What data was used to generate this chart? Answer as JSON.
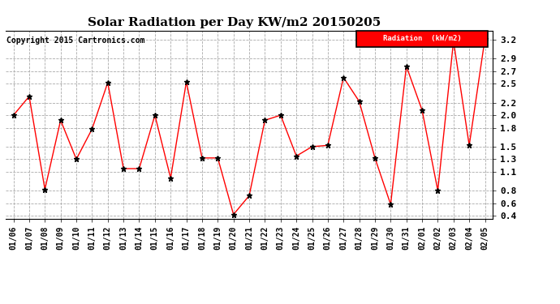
{
  "title": "Solar Radiation per Day KW/m2 20150205",
  "copyright": "Copyright 2015 Cartronics.com",
  "legend_label": "Radiation  (kW/m2)",
  "x_labels": [
    "01/06",
    "01/07",
    "01/08",
    "01/09",
    "01/10",
    "01/11",
    "01/12",
    "01/13",
    "01/14",
    "01/15",
    "01/16",
    "01/17",
    "01/18",
    "01/19",
    "01/20",
    "01/21",
    "01/22",
    "01/23",
    "01/24",
    "01/25",
    "01/26",
    "01/27",
    "01/28",
    "01/29",
    "01/30",
    "01/31",
    "02/01",
    "02/02",
    "02/03",
    "02/04",
    "02/05"
  ],
  "y_values": [
    2.0,
    2.3,
    0.82,
    1.92,
    1.3,
    1.78,
    2.52,
    1.15,
    1.15,
    2.0,
    1.0,
    2.53,
    1.32,
    1.32,
    0.42,
    0.72,
    1.92,
    2.0,
    1.35,
    1.5,
    1.52,
    2.6,
    2.22,
    1.32,
    0.58,
    2.78,
    2.08,
    0.8,
    3.18,
    1.52,
    3.22
  ],
  "line_color": "#ff0000",
  "marker": "*",
  "marker_color": "#000000",
  "marker_size": 5,
  "grid_color": "#aaaaaa",
  "background_color": "#ffffff",
  "ylim_min": 0.35,
  "ylim_max": 3.35,
  "yticks": [
    0.4,
    0.6,
    0.8,
    1.1,
    1.3,
    1.5,
    1.8,
    2.0,
    2.2,
    2.5,
    2.7,
    2.9,
    3.2
  ],
  "legend_bg": "#ff0000",
  "legend_text_color": "#ffffff",
  "title_fontsize": 11,
  "tick_fontsize": 7,
  "copyright_fontsize": 7
}
